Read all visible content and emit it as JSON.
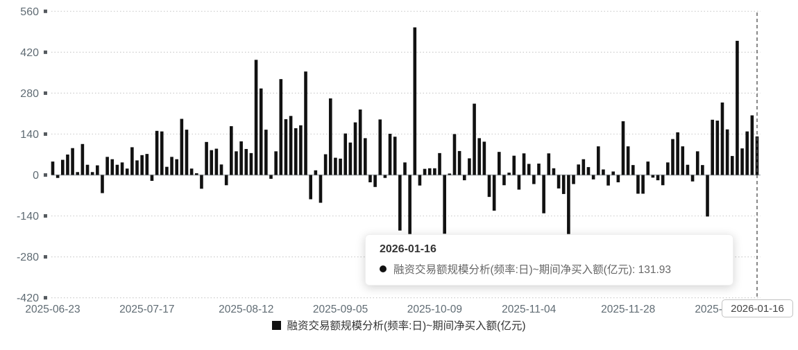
{
  "chart": {
    "chart_data": {
      "type": "bar",
      "title": "",
      "series_name": "融资交易额规模分析(频率:日)~期间净买入额(亿元)",
      "xlabel": "",
      "ylabel": "",
      "ylim": [
        -420,
        560
      ],
      "y_ticks": [
        560,
        420,
        280,
        140,
        0,
        -140,
        -280,
        -420
      ],
      "grid": "dotted-horizontal",
      "legend_position": "bottom-center",
      "x_tick_labels": [
        "2025-06-23",
        "2025-07-17",
        "2025-08-12",
        "2025-09-05",
        "2025-10-09",
        "2025-11-04",
        "2025-11-28",
        "2025-12-24"
      ],
      "x_tick_indices": [
        0,
        19,
        39,
        58,
        77,
        96,
        116,
        135
      ],
      "highlighted_x": "2026-01-16",
      "highlighted_value": 131.93,
      "values": [
        46,
        -10,
        52,
        70,
        92,
        10,
        106,
        35,
        10,
        33,
        -62,
        62,
        54,
        35,
        43,
        22,
        95,
        50,
        68,
        72,
        -20,
        151,
        149,
        28,
        62,
        54,
        192,
        155,
        22,
        6,
        -47,
        113,
        85,
        90,
        36,
        -35,
        167,
        81,
        115,
        89,
        75,
        394,
        296,
        155,
        -13,
        81,
        328,
        191,
        202,
        160,
        170,
        354,
        -83,
        16,
        -95,
        71,
        262,
        59,
        56,
        142,
        111,
        180,
        224,
        126,
        -25,
        -41,
        190,
        -10,
        141,
        131,
        -190,
        43,
        -202,
        505,
        -36,
        21,
        23,
        23,
        75,
        -201,
        5,
        140,
        82,
        -18,
        57,
        244,
        126,
        114,
        -75,
        -122,
        79,
        -35,
        8,
        66,
        -50,
        74,
        38,
        -31,
        39,
        -131,
        74,
        23,
        -46,
        -65,
        -202,
        -31,
        36,
        54,
        27,
        -15,
        98,
        19,
        -36,
        12,
        -25,
        184,
        98,
        34,
        -64,
        -64,
        46,
        -9,
        -18,
        -35,
        43,
        123,
        146,
        98,
        35,
        -22,
        81,
        34,
        -142,
        189,
        186,
        248,
        156,
        65,
        459,
        91,
        149,
        204,
        131.93
      ]
    }
  },
  "tooltip": {
    "title": "2026-01-16",
    "series_label": "融资交易额规模分析(频率:日)~期间净买入额(亿元)",
    "separator": ": ",
    "value": "131.93"
  },
  "axis_pointer": {
    "label": "2026-01-16"
  },
  "legend": {
    "label": "融资交易额规模分析(频率:日)~期间净买入额(亿元)"
  },
  "colors": {
    "bar": "#111111",
    "grid": "#cccccc",
    "zero_axis": "#b0b6ba",
    "axis_label": "#5f6b73",
    "tick_square": "#555a5f",
    "pointer_line": "#555555",
    "background": "#ffffff"
  }
}
